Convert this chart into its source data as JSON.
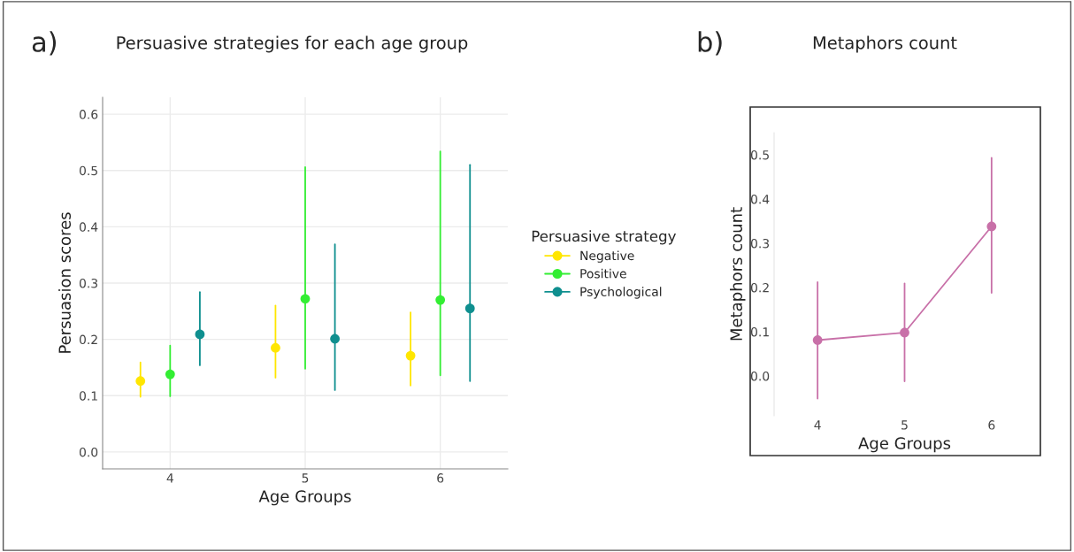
{
  "chart_data": [
    {
      "type": "scatter",
      "title": "Persuasive strategies for each age group",
      "xlabel": "Age Groups",
      "ylabel": "Persuasion scores",
      "legend_title": "Persuasive strategy",
      "annotations": [
        "a)"
      ],
      "categories": [
        "4",
        "5",
        "6"
      ],
      "series": [
        {
          "name": "Negative",
          "color": "#ffe600",
          "values": [
            0.126,
            0.185,
            0.171
          ],
          "errors": [
            [
              0.098,
              0.159
            ],
            [
              0.132,
              0.26
            ],
            [
              0.118,
              0.248
            ]
          ]
        },
        {
          "name": "Positive",
          "color": "#33ee33",
          "values": [
            0.138,
            0.272,
            0.27
          ],
          "errors": [
            [
              0.099,
              0.189
            ],
            [
              0.148,
              0.506
            ],
            [
              0.136,
              0.534
            ]
          ]
        },
        {
          "name": "Psychological",
          "color": "#0f8f8f",
          "values": [
            0.209,
            0.201,
            0.255
          ],
          "errors": [
            [
              0.154,
              0.284
            ],
            [
              0.11,
              0.369
            ],
            [
              0.126,
              0.51
            ]
          ]
        }
      ],
      "ylim": [
        -0.03,
        0.63
      ],
      "yticks": [
        {
          "value": 0,
          "label": "0.0"
        },
        0.1,
        0.2,
        0.3,
        0.4,
        0.5,
        0.6
      ],
      "grid": true,
      "legend": "right",
      "marker": "circle"
    },
    {
      "type": "line",
      "title": "Metaphors count",
      "xlabel": "Age Groups",
      "ylabel": "Metaphors count",
      "annotations": [
        "b)"
      ],
      "categories": [
        "4",
        "5",
        "6"
      ],
      "series": [
        {
          "color": "#c870a8",
          "values": [
            0.081,
            0.098,
            0.338
          ],
          "errors": [
            [
              -0.051,
              0.212
            ],
            [
              -0.012,
              0.209
            ],
            [
              0.188,
              0.493
            ]
          ]
        }
      ],
      "ylim": [
        -0.09,
        0.55
      ],
      "yticks": [
        {
          "value": 0,
          "label": "0.0"
        },
        0.1,
        0.2,
        0.3,
        0.4,
        0.5
      ],
      "grid": false,
      "marker": "circle"
    }
  ]
}
